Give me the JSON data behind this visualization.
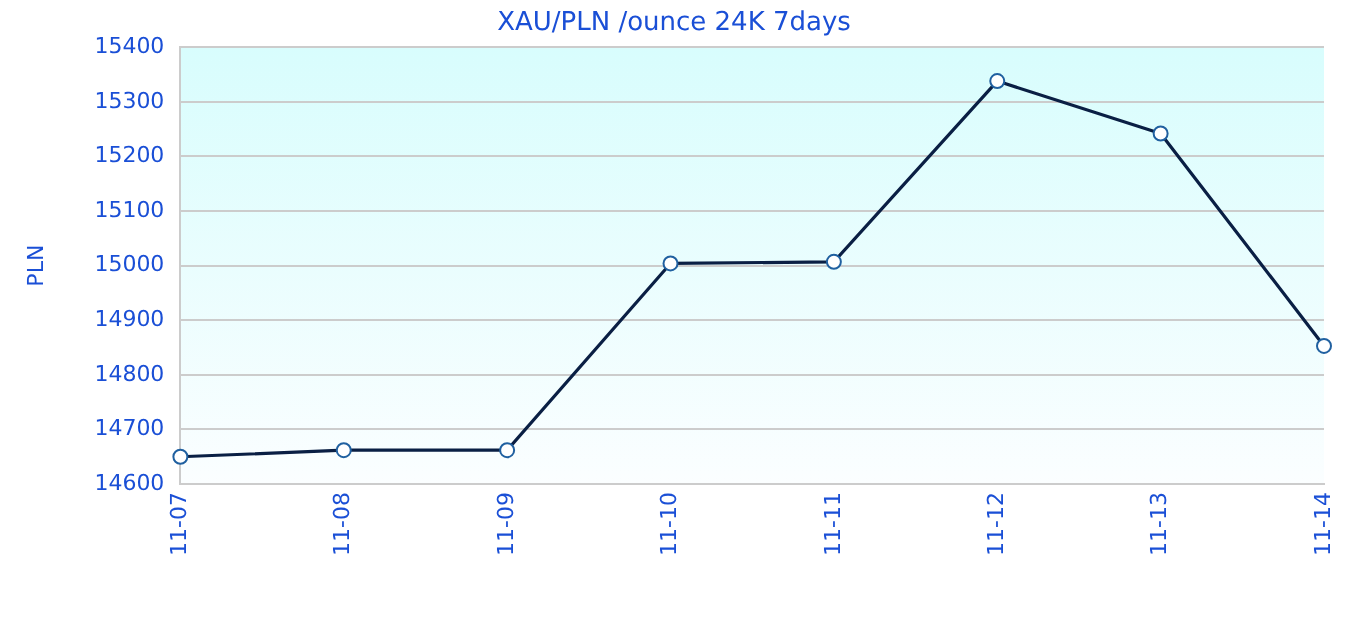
{
  "chart_data": {
    "type": "line",
    "title": "XAU/PLN /ounce 24K 7days",
    "ylabel": "PLN",
    "categories": [
      "11-07",
      "11-08",
      "11-09",
      "11-10",
      "11-11",
      "11-12",
      "11-13",
      "11-14"
    ],
    "series": [
      {
        "color": "#0a1f44",
        "values": [
          14650,
          14662,
          14662,
          15004,
          15007,
          15338,
          15242,
          14853
        ]
      }
    ],
    "ylim": [
      14600,
      15400
    ],
    "yticks": [
      14600,
      14700,
      14800,
      14900,
      15000,
      15100,
      15200,
      15300,
      15400
    ],
    "grid": "y",
    "legend": false,
    "marker": "circle",
    "line_style": "solid"
  }
}
